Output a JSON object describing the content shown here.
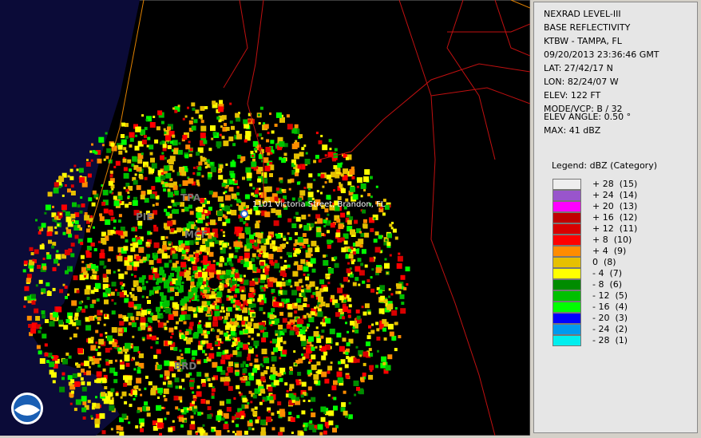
{
  "info": {
    "lines": [
      "NEXRAD LEVEL-III",
      "BASE REFLECTIVITY",
      "KTBW - TAMPA, FL",
      "09/20/2013 23:36:46 GMT",
      "LAT: 27/42/17 N",
      "LON: 82/24/07 W",
      "ELEV: 122 FT",
      "MODE/VCP: B / 32"
    ],
    "extra": [
      "ELEV ANGLE: 0.50 °",
      "MAX: 41 dBZ"
    ]
  },
  "legend": {
    "title": "Legend: dBZ (Category)",
    "entries": [
      {
        "label": "+ 28  (15)",
        "color": "#eeeeee"
      },
      {
        "label": "+ 24  (14)",
        "color": "#9955cc"
      },
      {
        "label": "+ 20  (13)",
        "color": "#ff00ff"
      },
      {
        "label": "+ 16  (12)",
        "color": "#c00000"
      },
      {
        "label": "+ 12  (11)",
        "color": "#d80000"
      },
      {
        "label": "+ 8  (10)",
        "color": "#ff0000"
      },
      {
        "label": "+ 4  (9)",
        "color": "#ff8c00"
      },
      {
        "label": "0  (8)",
        "color": "#e6c000"
      },
      {
        "label": "- 4  (7)",
        "color": "#ffff00"
      },
      {
        "label": "- 8  (6)",
        "color": "#008c00"
      },
      {
        "label": "- 12  (5)",
        "color": "#00c000"
      },
      {
        "label": "- 16  (4)",
        "color": "#00ff00"
      },
      {
        "label": "- 20  (3)",
        "color": "#0000ff"
      },
      {
        "label": "- 24  (2)",
        "color": "#0099ee"
      },
      {
        "label": "- 28  (1)",
        "color": "#00eeee"
      }
    ]
  },
  "map": {
    "address": "1101 Victoria Street, Brandon, FL",
    "places": [
      "TPA",
      "PIE",
      "MCF",
      "BRD"
    ]
  }
}
